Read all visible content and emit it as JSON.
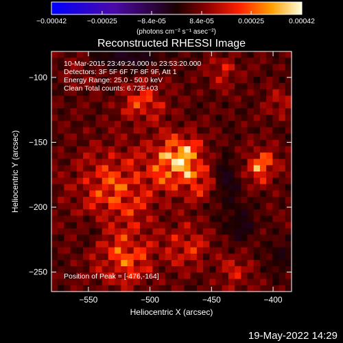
{
  "chart_data": {
    "type": "heatmap",
    "title": "Reconstructed RHESSI Image",
    "xlabel": "Heliocentric X (arcsec)",
    "ylabel": "Heliocentric Y (arcsec)",
    "xlim": [
      -580,
      -385
    ],
    "ylim": [
      -265,
      -80
    ],
    "xticks": [
      -550,
      -500,
      -450,
      -400
    ],
    "yticks": [
      -100,
      -150,
      -200,
      -250
    ],
    "colormap": "RHESSI red temperature",
    "colorbar": {
      "unit_label": "(photons cm⁻² s⁻¹ asec⁻²)",
      "ticks": [
        "-0.00042",
        "-0.00025",
        "-8.4e-05",
        "8.4e-05",
        "0.00025",
        "0.00042"
      ],
      "range": [
        -0.00042,
        0.00042
      ]
    },
    "annotations": [
      "10-Mar-2015 23:49:24.000 to 23:53:20.000",
      "Detectors: 3F 5F 6F 7F 8F 9F, Att 1",
      "Energy Range: 25.0 - 50.0 keV",
      "Clean    Total counts: 6.72E+03"
    ],
    "peak": {
      "label": "Position of Peak = [-476,-164]",
      "x": -476,
      "y": -164
    },
    "sources": [
      {
        "x": -476,
        "y": -165,
        "sx": 14,
        "sy": 13,
        "amp": 0.00042
      },
      {
        "x": -410,
        "y": -168,
        "sx": 9,
        "sy": 9,
        "amp": 0.00028
      },
      {
        "x": -528,
        "y": -188,
        "sx": 22,
        "sy": 22,
        "amp": 0.00022
      },
      {
        "x": -505,
        "y": -120,
        "sx": 12,
        "sy": 10,
        "amp": 0.0002
      },
      {
        "x": -520,
        "y": -240,
        "sx": 16,
        "sy": 14,
        "amp": 0.00022
      },
      {
        "x": -470,
        "y": -230,
        "sx": 12,
        "sy": 12,
        "amp": 0.00016
      },
      {
        "x": -430,
        "y": -250,
        "sx": 10,
        "sy": 10,
        "amp": 0.00012
      },
      {
        "x": -440,
        "y": -95,
        "sx": 8,
        "sy": 8,
        "amp": 0.00014
      },
      {
        "x": -395,
        "y": -120,
        "sx": 8,
        "sy": 8,
        "amp": 0.0001
      },
      {
        "x": -555,
        "y": -95,
        "sx": 9,
        "sy": 9,
        "amp": 6e-05
      },
      {
        "x": -455,
        "y": -185,
        "sx": 9,
        "sy": 9,
        "amp": 0.00013
      },
      {
        "x": -520,
        "y": -85,
        "sx": 22,
        "sy": 6,
        "amp": -0.00012
      },
      {
        "x": -440,
        "y": -180,
        "sx": 10,
        "sy": 16,
        "amp": -0.00012
      },
      {
        "x": -545,
        "y": -215,
        "sx": 10,
        "sy": 10,
        "amp": -9e-05
      },
      {
        "x": -425,
        "y": -215,
        "sx": 8,
        "sy": 10,
        "amp": -0.0001
      },
      {
        "x": -395,
        "y": -240,
        "sx": 8,
        "sy": 10,
        "amp": -8e-05
      }
    ]
  },
  "footer": {
    "timestamp": "19-May-2022 14:29"
  }
}
